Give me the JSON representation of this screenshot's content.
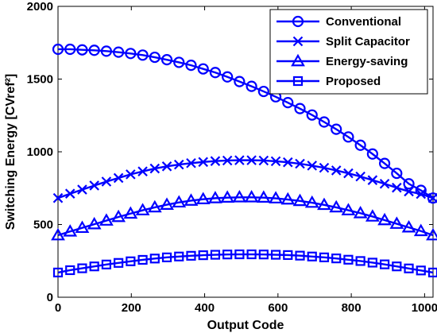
{
  "chart_data": {
    "type": "line",
    "xlabel": "Output Code",
    "ylabel": "Switching Energy [CVref²]",
    "xlim": [
      0,
      1023
    ],
    "ylim": [
      0,
      2000
    ],
    "xticks": [
      0,
      200,
      400,
      600,
      800,
      1000
    ],
    "yticks": [
      0,
      500,
      1000,
      1500,
      2000
    ],
    "grid": false,
    "legend_position": "top-right",
    "line_color": "#0000ff",
    "x": [
      0,
      33,
      66,
      99,
      132,
      165,
      198,
      231,
      264,
      297,
      330,
      363,
      396,
      429,
      462,
      495,
      528,
      561,
      594,
      627,
      660,
      693,
      726,
      759,
      792,
      825,
      858,
      891,
      924,
      957,
      990,
      1023
    ],
    "series": [
      {
        "name": "Conventional",
        "marker": "circle",
        "values": [
          1705,
          1705,
          1701,
          1698,
          1692,
          1685,
          1676,
          1665,
          1650,
          1633,
          1615,
          1595,
          1570,
          1545,
          1515,
          1483,
          1450,
          1415,
          1378,
          1338,
          1297,
          1253,
          1205,
          1155,
          1102,
          1045,
          985,
          920,
          852,
          780,
          735,
          682
        ]
      },
      {
        "name": "Split Capacitor",
        "marker": "x",
        "values": [
          682,
          712,
          740,
          768,
          795,
          820,
          845,
          865,
          885,
          900,
          912,
          922,
          930,
          936,
          940,
          942,
          942,
          940,
          935,
          928,
          918,
          905,
          890,
          872,
          852,
          830,
          805,
          780,
          753,
          727,
          710,
          682
        ]
      },
      {
        "name": "Energy-saving",
        "marker": "triangle",
        "values": [
          426,
          452,
          477,
          502,
          527,
          552,
          575,
          598,
          618,
          636,
          652,
          664,
          674,
          681,
          685,
          687,
          687,
          685,
          680,
          672,
          662,
          650,
          635,
          618,
          598,
          578,
          555,
          530,
          505,
          480,
          455,
          426
        ]
      },
      {
        "name": "Proposed",
        "marker": "square",
        "values": [
          170,
          186,
          199,
          212,
          225,
          236,
          247,
          257,
          266,
          274,
          280,
          285,
          289,
          292,
          294,
          295,
          295,
          294,
          292,
          290,
          286,
          280,
          274,
          267,
          258,
          249,
          238,
          226,
          212,
          198,
          184,
          170
        ]
      }
    ]
  }
}
